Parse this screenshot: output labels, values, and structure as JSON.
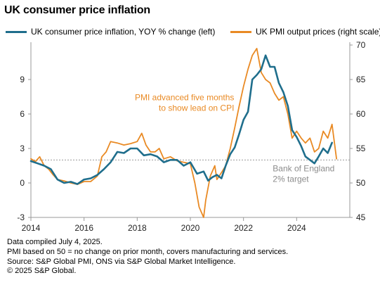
{
  "title": "UK consumer price inflation",
  "chart_data": {
    "type": "line",
    "title": "UK consumer price inflation",
    "x_range": [
      2014.0,
      2026.0
    ],
    "x_ticks": [
      "2014",
      "2016",
      "2018",
      "2020",
      "2022",
      "2024"
    ],
    "y_left": {
      "range": [
        -3,
        12
      ],
      "ticks": [
        "-3",
        "0",
        "3",
        "6",
        "9"
      ]
    },
    "y_right": {
      "range": [
        45,
        70
      ],
      "ticks": [
        "45",
        "50",
        "55",
        "60",
        "65",
        "70"
      ]
    },
    "grid": false,
    "legend_position": "top",
    "series": [
      {
        "name": "UK consumer price inflation, YOY % change (left)",
        "axis": "left",
        "color": "#1f6e8c",
        "points": [
          [
            2014.0,
            1.9
          ],
          [
            2014.25,
            1.7
          ],
          [
            2014.5,
            1.5
          ],
          [
            2014.75,
            1.2
          ],
          [
            2015.0,
            0.3
          ],
          [
            2015.25,
            0.0
          ],
          [
            2015.5,
            0.1
          ],
          [
            2015.75,
            -0.1
          ],
          [
            2016.0,
            0.3
          ],
          [
            2016.25,
            0.4
          ],
          [
            2016.5,
            0.7
          ],
          [
            2016.75,
            1.2
          ],
          [
            2017.0,
            1.8
          ],
          [
            2017.25,
            2.7
          ],
          [
            2017.5,
            2.6
          ],
          [
            2017.75,
            3.0
          ],
          [
            2018.0,
            3.0
          ],
          [
            2018.25,
            2.4
          ],
          [
            2018.5,
            2.5
          ],
          [
            2018.75,
            2.3
          ],
          [
            2019.0,
            1.8
          ],
          [
            2019.25,
            2.0
          ],
          [
            2019.5,
            2.0
          ],
          [
            2019.75,
            1.5
          ],
          [
            2020.0,
            1.8
          ],
          [
            2020.25,
            0.8
          ],
          [
            2020.5,
            1.0
          ],
          [
            2020.67,
            0.2
          ],
          [
            2020.83,
            0.5
          ],
          [
            2021.0,
            0.7
          ],
          [
            2021.17,
            0.4
          ],
          [
            2021.33,
            1.5
          ],
          [
            2021.5,
            2.5
          ],
          [
            2021.67,
            3.1
          ],
          [
            2021.83,
            4.2
          ],
          [
            2022.0,
            5.5
          ],
          [
            2022.17,
            6.2
          ],
          [
            2022.33,
            9.0
          ],
          [
            2022.5,
            9.4
          ],
          [
            2022.67,
            9.9
          ],
          [
            2022.83,
            11.1
          ],
          [
            2023.0,
            10.1
          ],
          [
            2023.17,
            10.1
          ],
          [
            2023.33,
            8.7
          ],
          [
            2023.5,
            7.9
          ],
          [
            2023.67,
            6.7
          ],
          [
            2023.83,
            4.6
          ],
          [
            2024.0,
            4.0
          ],
          [
            2024.17,
            3.2
          ],
          [
            2024.33,
            2.3
          ],
          [
            2024.5,
            2.0
          ],
          [
            2024.67,
            1.7
          ],
          [
            2024.83,
            2.3
          ],
          [
            2025.0,
            3.0
          ],
          [
            2025.17,
            2.6
          ],
          [
            2025.33,
            3.5
          ]
        ]
      },
      {
        "name": "UK PMI output prices (right scale)",
        "axis": "right",
        "color": "#e98a24",
        "points": [
          [
            2014.0,
            53.5
          ],
          [
            2014.17,
            53.1
          ],
          [
            2014.33,
            53.8
          ],
          [
            2014.5,
            52.5
          ],
          [
            2014.67,
            52.0
          ],
          [
            2014.83,
            51.2
          ],
          [
            2015.0,
            50.5
          ],
          [
            2015.25,
            50.3
          ],
          [
            2015.5,
            50.0
          ],
          [
            2015.75,
            49.8
          ],
          [
            2016.0,
            50.2
          ],
          [
            2016.25,
            50.2
          ],
          [
            2016.5,
            51.0
          ],
          [
            2016.67,
            53.8
          ],
          [
            2016.83,
            54.5
          ],
          [
            2017.0,
            56.0
          ],
          [
            2017.25,
            55.8
          ],
          [
            2017.5,
            55.5
          ],
          [
            2017.75,
            55.7
          ],
          [
            2018.0,
            56.0
          ],
          [
            2018.17,
            57.2
          ],
          [
            2018.33,
            55.5
          ],
          [
            2018.5,
            54.5
          ],
          [
            2018.67,
            54.5
          ],
          [
            2018.83,
            55.0
          ],
          [
            2019.0,
            53.5
          ],
          [
            2019.25,
            53.8
          ],
          [
            2019.5,
            53.2
          ],
          [
            2019.75,
            53.0
          ],
          [
            2020.0,
            52.8
          ],
          [
            2020.17,
            50.0
          ],
          [
            2020.33,
            46.5
          ],
          [
            2020.5,
            45.0
          ],
          [
            2020.58,
            47.5
          ],
          [
            2020.75,
            51.0
          ],
          [
            2020.92,
            52.5
          ],
          [
            2021.0,
            50.5
          ],
          [
            2021.17,
            51.5
          ],
          [
            2021.33,
            52.5
          ],
          [
            2021.5,
            55.0
          ],
          [
            2021.67,
            58.0
          ],
          [
            2021.83,
            61.0
          ],
          [
            2022.0,
            64.0
          ],
          [
            2022.17,
            66.5
          ],
          [
            2022.33,
            68.5
          ],
          [
            2022.5,
            69.5
          ],
          [
            2022.67,
            66.0
          ],
          [
            2022.83,
            65.0
          ],
          [
            2023.0,
            64.5
          ],
          [
            2023.17,
            63.0
          ],
          [
            2023.33,
            62.0
          ],
          [
            2023.5,
            62.5
          ],
          [
            2023.67,
            60.0
          ],
          [
            2023.83,
            56.5
          ],
          [
            2024.0,
            57.5
          ],
          [
            2024.17,
            56.5
          ],
          [
            2024.33,
            55.8
          ],
          [
            2024.5,
            56.5
          ],
          [
            2024.67,
            54.5
          ],
          [
            2024.83,
            55.0
          ],
          [
            2025.0,
            57.5
          ],
          [
            2025.17,
            56.5
          ],
          [
            2025.33,
            58.5
          ],
          [
            2025.5,
            53.5
          ]
        ]
      }
    ],
    "reference_line": {
      "axis": "left",
      "value": 2
    },
    "annotations": [
      {
        "lines": [
          "PMI advanced five months",
          "to show lead on CPI"
        ],
        "color": "#e98a24",
        "x": 2021.65,
        "y": 7.2,
        "align": "end"
      },
      {
        "lines": [
          "Bank of England",
          "2% target"
        ],
        "color": "#8c8c8c",
        "x": 2023.1,
        "y": 1.0,
        "align": "start"
      }
    ]
  },
  "notes": [
    "Data compiled July 4, 2025.",
    "PMI based on 50 = no change on prior month, covers manufacturing and services.",
    "Source: S&P Global PMI, ONS via S&P Global Market Intelligence.",
    "© 2025 S&P Global."
  ]
}
